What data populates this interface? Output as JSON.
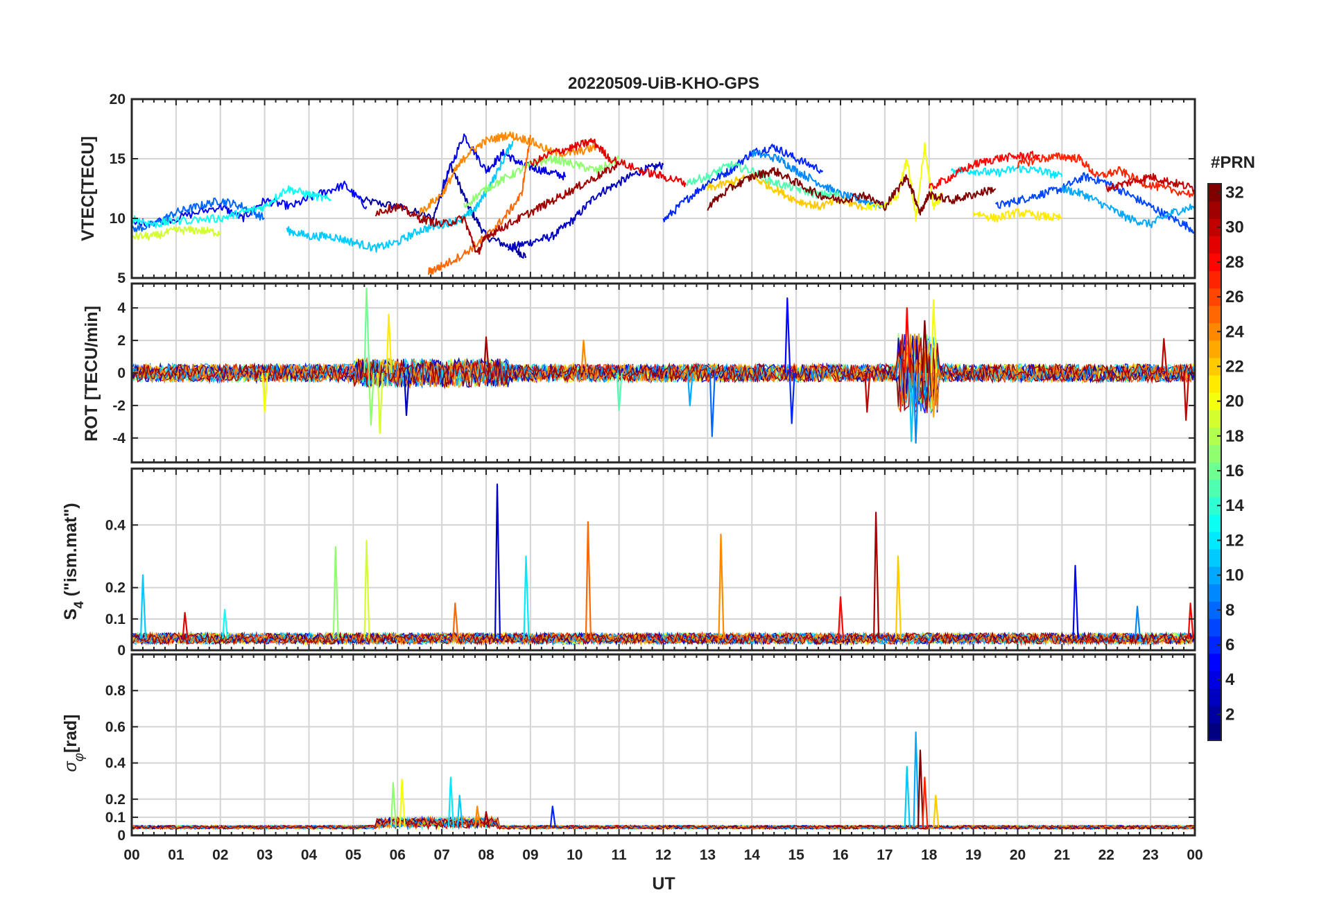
{
  "chart_data": {
    "type": "line",
    "title": "20220509-UiB-KHO-GPS",
    "xlabel": "UT",
    "xlim": [
      0,
      24
    ],
    "xticks": [
      0,
      1,
      2,
      3,
      4,
      5,
      6,
      7,
      8,
      9,
      10,
      11,
      12,
      13,
      14,
      15,
      16,
      17,
      18,
      19,
      20,
      21,
      22,
      23,
      24
    ],
    "xtick_labels": [
      "00",
      "01",
      "02",
      "03",
      "04",
      "05",
      "06",
      "07",
      "08",
      "09",
      "10",
      "11",
      "12",
      "13",
      "14",
      "15",
      "16",
      "17",
      "18",
      "19",
      "20",
      "21",
      "22",
      "23",
      "00"
    ],
    "grid": true,
    "panels": [
      {
        "id": "vtec",
        "ylabel": "VTEC[TECU]",
        "ylim": [
          5,
          20
        ],
        "yticks": [
          5,
          10,
          15,
          20
        ],
        "ytick_labels": [
          "5",
          "10",
          "15",
          "20"
        ],
        "series": [
          {
            "prn": 2,
            "x": [
              5.2,
              6.0,
              6.8,
              7.2,
              7.6,
              8.0,
              8.6,
              8.9
            ],
            "y": [
              11.5,
              11.0,
              10.0,
              14.5,
              11.0,
              8.5,
              7.5,
              6.8
            ]
          },
          {
            "prn": 3,
            "x": [
              8.5,
              9.0,
              9.5,
              10.0,
              10.5,
              11.0,
              11.5,
              12.0
            ],
            "y": [
              7.5,
              8.0,
              8.5,
              10.0,
              12.0,
              13.0,
              14.0,
              14.5
            ]
          },
          {
            "prn": 4,
            "x": [
              7.0,
              7.5,
              8.0,
              8.4,
              8.8,
              9.3,
              9.8
            ],
            "y": [
              12.5,
              17.0,
              14.0,
              15.5,
              14.5,
              14.0,
              13.5
            ]
          },
          {
            "prn": 5,
            "x": [
              0,
              1.0,
              2.0,
              2.5,
              3.0,
              3.6,
              4.2,
              4.8,
              5.3
            ],
            "y": [
              9.5,
              10.0,
              11.0,
              10.0,
              11.5,
              11.0,
              12.0,
              12.8,
              11.0
            ]
          },
          {
            "prn": 6,
            "x": [
              12.0,
              12.5,
              13.0,
              13.5,
              14.0,
              14.5,
              15.0,
              15.6
            ],
            "y": [
              9.8,
              11.5,
              13.0,
              14.0,
              15.5,
              16.0,
              15.0,
              14.0
            ]
          },
          {
            "prn": 7,
            "x": [
              19.5,
              20.0,
              20.5,
              21.0,
              21.5,
              22.0,
              22.5,
              23.0,
              23.5,
              24.0
            ],
            "y": [
              11.0,
              11.5,
              12.0,
              12.5,
              13.5,
              13.0,
              12.0,
              11.0,
              10.0,
              9.0
            ]
          },
          {
            "prn": 8,
            "x": [
              0,
              0.5,
              1.0,
              1.5,
              2.0,
              2.5,
              3.0
            ],
            "y": [
              9.0,
              9.5,
              10.5,
              11.0,
              11.5,
              11.0,
              10.0
            ]
          },
          {
            "prn": 9,
            "x": [
              14.0,
              14.6,
              15.0,
              15.5,
              16.0,
              16.5,
              17.0
            ],
            "y": [
              15.5,
              15.0,
              14.0,
              13.0,
              12.0,
              11.5,
              11.0
            ]
          },
          {
            "prn": 10,
            "x": [
              21.0,
              21.5,
              22.0,
              22.5,
              23.0,
              23.5,
              24.0
            ],
            "y": [
              12.5,
              12.0,
              11.0,
              10.0,
              9.5,
              10.5,
              11.0
            ]
          },
          {
            "prn": 11,
            "x": [
              3.5,
              4.0,
              4.5,
              5.0,
              5.5,
              6.0,
              6.5,
              7.0,
              7.5,
              7.8,
              8.2,
              8.6
            ],
            "y": [
              9.0,
              8.5,
              8.5,
              8.0,
              7.5,
              8.0,
              9.0,
              9.5,
              10.0,
              11.0,
              13.5,
              16.5
            ]
          },
          {
            "prn": 12,
            "x": [
              18.5,
              19.0,
              19.5,
              20.0,
              20.5,
              21.0
            ],
            "y": [
              14.0,
              14.0,
              13.8,
              14.2,
              14.0,
              13.5
            ]
          },
          {
            "prn": 13,
            "x": [
              0,
              0.5,
              1.0,
              2.0,
              2.5,
              3.0,
              3.5,
              4.0,
              4.5
            ],
            "y": [
              10.0,
              9.5,
              9.8,
              10.0,
              10.5,
              11.0,
              12.5,
              12.0,
              11.5
            ]
          },
          {
            "prn": 15,
            "x": [
              12.5,
              13.0,
              13.5,
              14.0,
              14.5,
              15.0,
              15.5,
              16.0
            ],
            "y": [
              13.0,
              13.5,
              14.5,
              14.0,
              13.0,
              12.5,
              12.0,
              12.0
            ]
          },
          {
            "prn": 17,
            "x": [
              7.5,
              8.0,
              8.5,
              9.0,
              9.5,
              10.0,
              10.5,
              11.0
            ],
            "y": [
              11.0,
              12.5,
              13.5,
              14.5,
              15.0,
              14.5,
              14.0,
              15.0
            ]
          },
          {
            "prn": 19,
            "x": [
              0,
              0.5,
              1.0,
              1.5,
              2.0
            ],
            "y": [
              8.5,
              8.5,
              9.0,
              9.0,
              8.8
            ]
          },
          {
            "prn": 20,
            "x": [
              16.5,
              17.0,
              17.3,
              17.5,
              17.7,
              17.9,
              18.1,
              18.3
            ],
            "y": [
              11.0,
              11.0,
              12.0,
              15.0,
              10.0,
              16.0,
              11.0,
              12.0
            ]
          },
          {
            "prn": 21,
            "x": [
              19.0,
              19.5,
              20.0,
              20.5,
              21.0
            ],
            "y": [
              10.5,
              10.0,
              10.5,
              10.2,
              10.0
            ]
          },
          {
            "prn": 22,
            "x": [
              13.0,
              13.5,
              14.0,
              14.5,
              15.0,
              15.5,
              16.0,
              16.5
            ],
            "y": [
              12.5,
              13.0,
              13.5,
              12.5,
              11.5,
              11.0,
              11.5,
              11.0
            ]
          },
          {
            "prn": 24,
            "x": [
              6.5,
              7.0,
              7.3,
              7.6,
              8.0,
              8.5,
              9.0,
              9.5,
              10.0,
              10.5
            ],
            "y": [
              10.5,
              12.0,
              14.0,
              15.5,
              16.5,
              17.0,
              16.5,
              15.5,
              15.5,
              16.0
            ]
          },
          {
            "prn": 25,
            "x": [
              6.7,
              7.0,
              7.5,
              8.0,
              8.4,
              8.8,
              9.0
            ],
            "y": [
              5.5,
              6.0,
              7.0,
              8.5,
              10.0,
              12.0,
              17.0
            ]
          },
          {
            "prn": 27,
            "x": [
              20.0,
              20.5,
              21.0,
              21.4,
              21.8,
              22.3,
              22.8,
              23.3,
              24.0
            ],
            "y": [
              14.5,
              15.0,
              15.2,
              15.0,
              13.5,
              14.0,
              13.0,
              12.5,
              12.0
            ]
          },
          {
            "prn": 28,
            "x": [
              18.0,
              18.5,
              19.0,
              19.5,
              20.0,
              20.5
            ],
            "y": [
              12.5,
              13.5,
              14.5,
              15.0,
              15.2,
              15.3
            ]
          },
          {
            "prn": 29,
            "x": [
              9.0,
              9.5,
              10.0,
              10.4,
              10.8,
              11.5,
              12.0,
              12.5
            ],
            "y": [
              14.5,
              15.5,
              16.0,
              16.5,
              15.0,
              14.0,
              13.5,
              13.0
            ]
          },
          {
            "prn": 30,
            "x": [
              22.0,
              22.5,
              23.0,
              23.5,
              24.0
            ],
            "y": [
              12.5,
              13.0,
              13.5,
              13.0,
              12.5
            ]
          },
          {
            "prn": 31,
            "x": [
              5.5,
              6.0,
              6.5,
              7.0,
              7.5,
              7.8,
              8.0,
              8.5,
              9.0,
              9.5,
              10.0,
              10.5,
              11.0
            ],
            "y": [
              10.5,
              11.0,
              10.0,
              9.5,
              10.0,
              7.0,
              8.5,
              9.5,
              10.5,
              11.5,
              12.5,
              13.5,
              14.5
            ]
          },
          {
            "prn": 32,
            "x": [
              13.0,
              13.5,
              14.0,
              14.5,
              15.0,
              15.5,
              16.0,
              16.5,
              17.0,
              17.5,
              17.8,
              18.0,
              18.5,
              19.0,
              19.5
            ],
            "y": [
              11.0,
              12.5,
              13.5,
              14.0,
              13.0,
              12.0,
              11.5,
              12.0,
              11.0,
              13.5,
              10.5,
              12.0,
              11.5,
              12.0,
              12.5
            ]
          }
        ]
      },
      {
        "id": "rot",
        "ylabel": "ROT [TECU/min]",
        "ylim": [
          -5.5,
          5.5
        ],
        "yticks": [
          -4,
          -2,
          0,
          2,
          4
        ],
        "ytick_labels": [
          "-4",
          "-2",
          "0",
          "2",
          "4"
        ],
        "spikes": [
          {
            "x": 3.0,
            "y": -2.4,
            "prn": 20
          },
          {
            "x": 5.3,
            "y": 5.2,
            "prn": 16
          },
          {
            "x": 5.4,
            "y": -3.2,
            "prn": 17
          },
          {
            "x": 5.6,
            "y": -3.7,
            "prn": 19
          },
          {
            "x": 5.8,
            "y": 3.6,
            "prn": 21
          },
          {
            "x": 6.2,
            "y": -2.6,
            "prn": 3
          },
          {
            "x": 8.0,
            "y": 2.2,
            "prn": 31
          },
          {
            "x": 10.2,
            "y": 2.0,
            "prn": 24
          },
          {
            "x": 11.0,
            "y": -2.3,
            "prn": 15
          },
          {
            "x": 12.6,
            "y": -2.0,
            "prn": 10
          },
          {
            "x": 13.1,
            "y": -3.9,
            "prn": 8
          },
          {
            "x": 14.8,
            "y": 4.6,
            "prn": 5
          },
          {
            "x": 14.9,
            "y": -3.1,
            "prn": 6
          },
          {
            "x": 16.6,
            "y": -2.4,
            "prn": 30
          },
          {
            "x": 17.5,
            "y": 4.0,
            "prn": 28
          },
          {
            "x": 17.6,
            "y": -4.2,
            "prn": 11
          },
          {
            "x": 17.7,
            "y": -4.3,
            "prn": 9
          },
          {
            "x": 17.9,
            "y": 3.2,
            "prn": 32
          },
          {
            "x": 18.1,
            "y": 4.5,
            "prn": 20
          },
          {
            "x": 18.1,
            "y": -2.7,
            "prn": 23
          },
          {
            "x": 23.3,
            "y": 2.1,
            "prn": 30
          },
          {
            "x": 23.8,
            "y": -2.9,
            "prn": 30
          }
        ]
      },
      {
        "id": "s4",
        "ylabel": "S4 (\"ism.mat\")",
        "ylim": [
          0,
          0.58
        ],
        "yticks": [
          0,
          0.1,
          0.2,
          0.4
        ],
        "ytick_labels": [
          "0",
          "0.1",
          "0.2",
          "0.4"
        ],
        "spikes": [
          {
            "x": 0.25,
            "y": 0.24,
            "prn": 11
          },
          {
            "x": 1.2,
            "y": 0.12,
            "prn": 29
          },
          {
            "x": 2.1,
            "y": 0.13,
            "prn": 13
          },
          {
            "x": 4.6,
            "y": 0.33,
            "prn": 17
          },
          {
            "x": 5.3,
            "y": 0.35,
            "prn": 19
          },
          {
            "x": 7.3,
            "y": 0.15,
            "prn": 25
          },
          {
            "x": 8.25,
            "y": 0.53,
            "prn": 3
          },
          {
            "x": 8.9,
            "y": 0.3,
            "prn": 12
          },
          {
            "x": 10.3,
            "y": 0.41,
            "prn": 25
          },
          {
            "x": 13.3,
            "y": 0.37,
            "prn": 24
          },
          {
            "x": 16.0,
            "y": 0.17,
            "prn": 28
          },
          {
            "x": 16.8,
            "y": 0.44,
            "prn": 31
          },
          {
            "x": 17.3,
            "y": 0.3,
            "prn": 22
          },
          {
            "x": 21.3,
            "y": 0.27,
            "prn": 5
          },
          {
            "x": 22.7,
            "y": 0.14,
            "prn": 9
          },
          {
            "x": 23.9,
            "y": 0.15,
            "prn": 28
          }
        ]
      },
      {
        "id": "sigma_phi",
        "ylabel": "σφ[rad]",
        "ylim": [
          0,
          1.0
        ],
        "yticks": [
          0,
          0.1,
          0.2,
          0.4,
          0.6,
          0.8
        ],
        "ytick_labels": [
          "0",
          "0.1",
          "0.2",
          "0.4",
          "0.6",
          "0.8"
        ],
        "spikes": [
          {
            "x": 5.9,
            "y": 0.29,
            "prn": 17
          },
          {
            "x": 6.1,
            "y": 0.31,
            "prn": 20
          },
          {
            "x": 7.2,
            "y": 0.32,
            "prn": 12
          },
          {
            "x": 7.4,
            "y": 0.22,
            "prn": 11
          },
          {
            "x": 7.8,
            "y": 0.16,
            "prn": 24
          },
          {
            "x": 8.0,
            "y": 0.13,
            "prn": 31
          },
          {
            "x": 9.5,
            "y": 0.16,
            "prn": 6
          },
          {
            "x": 17.5,
            "y": 0.38,
            "prn": 11
          },
          {
            "x": 17.7,
            "y": 0.57,
            "prn": 10
          },
          {
            "x": 17.8,
            "y": 0.47,
            "prn": 32
          },
          {
            "x": 17.9,
            "y": 0.32,
            "prn": 27
          },
          {
            "x": 18.15,
            "y": 0.22,
            "prn": 22
          }
        ]
      }
    ],
    "colorbar": {
      "label": "#PRN",
      "range": [
        1,
        32
      ],
      "ticks": [
        2,
        4,
        6,
        8,
        10,
        12,
        14,
        16,
        18,
        20,
        22,
        24,
        26,
        28,
        30,
        32
      ],
      "tick_labels": [
        "2",
        "4",
        "6",
        "8",
        "10",
        "12",
        "14",
        "16",
        "18",
        "20",
        "22",
        "24",
        "26",
        "28",
        "30",
        "32"
      ],
      "colormap": "jet"
    }
  }
}
